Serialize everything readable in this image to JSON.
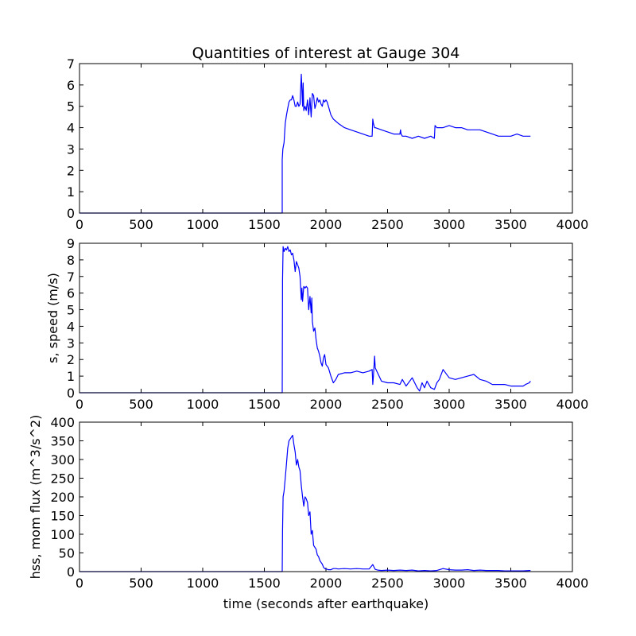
{
  "chart_data": [
    {
      "type": "line",
      "title": "Quantities of interest at Gauge 304",
      "xlabel": "",
      "ylabel": "",
      "xlim": [
        0,
        4000
      ],
      "ylim": [
        0,
        7
      ],
      "xticks": [
        "0",
        "500",
        "1000",
        "1500",
        "2000",
        "2500",
        "3000",
        "3500",
        "4000"
      ],
      "yticks": [
        "0",
        "1",
        "2",
        "3",
        "4",
        "5",
        "6",
        "7"
      ],
      "grid": false,
      "series": [
        {
          "color": "#0000ff",
          "x": [
            0,
            1645,
            1645,
            1650,
            1660,
            1670,
            1680,
            1690,
            1700,
            1710,
            1720,
            1730,
            1740,
            1750,
            1760,
            1770,
            1780,
            1790,
            1800,
            1810,
            1815,
            1820,
            1830,
            1840,
            1850,
            1860,
            1870,
            1880,
            1890,
            1900,
            1910,
            1920,
            1930,
            1940,
            1950,
            1960,
            1970,
            1980,
            1990,
            2000,
            2010,
            2020,
            2040,
            2060,
            2080,
            2100,
            2150,
            2200,
            2250,
            2300,
            2350,
            2375,
            2380,
            2385,
            2395,
            2400,
            2450,
            2500,
            2550,
            2600,
            2605,
            2610,
            2620,
            2650,
            2700,
            2750,
            2800,
            2850,
            2880,
            2885,
            2900,
            2950,
            3000,
            3050,
            3100,
            3150,
            3200,
            3250,
            3300,
            3350,
            3400,
            3450,
            3500,
            3550,
            3600,
            3650,
            3660
          ],
          "y": [
            0,
            0,
            2.5,
            3.0,
            3.3,
            4.2,
            4.6,
            4.9,
            5.2,
            5.3,
            5.3,
            5.5,
            5.3,
            5.0,
            5.0,
            5.2,
            5.0,
            5.1,
            6.5,
            5.0,
            6.1,
            4.8,
            5.0,
            4.8,
            5.3,
            4.6,
            5.4,
            4.5,
            5.6,
            5.5,
            4.9,
            5.1,
            5.4,
            5.2,
            5.3,
            5.1,
            5.0,
            5.3,
            5.2,
            5.3,
            5.2,
            5.0,
            4.6,
            4.4,
            4.3,
            4.2,
            4.0,
            3.9,
            3.8,
            3.7,
            3.6,
            3.6,
            4.4,
            4.2,
            4.0,
            4.0,
            3.9,
            3.8,
            3.7,
            3.7,
            3.9,
            3.7,
            3.6,
            3.6,
            3.5,
            3.6,
            3.5,
            3.6,
            3.5,
            4.1,
            4.0,
            4.0,
            4.1,
            4.0,
            4.0,
            3.9,
            3.9,
            3.9,
            3.8,
            3.7,
            3.6,
            3.6,
            3.6,
            3.7,
            3.6,
            3.6,
            3.6
          ]
        }
      ]
    },
    {
      "type": "line",
      "title": "",
      "xlabel": "",
      "ylabel": "s, speed (m/s)",
      "xlim": [
        0,
        4000
      ],
      "ylim": [
        0,
        9
      ],
      "xticks": [
        "0",
        "500",
        "1000",
        "1500",
        "2000",
        "2500",
        "3000",
        "3500",
        "4000"
      ],
      "yticks": [
        "0",
        "1",
        "2",
        "3",
        "4",
        "5",
        "6",
        "7",
        "8",
        "9"
      ],
      "grid": false,
      "series": [
        {
          "color": "#0000ff",
          "x": [
            0,
            1645,
            1648,
            1652,
            1660,
            1670,
            1680,
            1690,
            1700,
            1710,
            1720,
            1730,
            1740,
            1750,
            1760,
            1770,
            1780,
            1790,
            1800,
            1805,
            1810,
            1820,
            1830,
            1840,
            1850,
            1860,
            1870,
            1880,
            1885,
            1890,
            1895,
            1900,
            1910,
            1920,
            1930,
            1940,
            1950,
            1960,
            1970,
            1980,
            1990,
            2000,
            2020,
            2040,
            2060,
            2080,
            2100,
            2150,
            2200,
            2250,
            2300,
            2350,
            2375,
            2380,
            2385,
            2395,
            2400,
            2450,
            2500,
            2550,
            2600,
            2620,
            2650,
            2700,
            2720,
            2740,
            2760,
            2780,
            2800,
            2820,
            2850,
            2880,
            2900,
            2920,
            2950,
            3000,
            3050,
            3100,
            3150,
            3200,
            3250,
            3300,
            3350,
            3400,
            3450,
            3500,
            3550,
            3600,
            3620,
            3650,
            3660
          ],
          "y": [
            0,
            0,
            6.8,
            8.8,
            8.5,
            8.7,
            8.6,
            8.8,
            8.5,
            8.6,
            8.3,
            8.4,
            8.0,
            7.3,
            7.9,
            7.7,
            7.5,
            7.0,
            5.6,
            6.3,
            5.5,
            6.4,
            6.3,
            6.4,
            6.3,
            5.0,
            5.8,
            4.8,
            5.7,
            4.3,
            4.0,
            3.7,
            3.9,
            3.2,
            2.7,
            2.5,
            2.2,
            1.8,
            1.6,
            2.1,
            2.3,
            1.7,
            1.5,
            1.0,
            0.6,
            0.8,
            1.1,
            1.2,
            1.2,
            1.3,
            1.2,
            1.3,
            1.4,
            0.5,
            1.0,
            2.2,
            1.5,
            0.7,
            0.6,
            0.6,
            0.5,
            0.8,
            0.4,
            0.9,
            0.6,
            0.3,
            0.1,
            0.6,
            0.3,
            0.7,
            0.3,
            0.2,
            0.6,
            0.8,
            1.4,
            0.9,
            0.8,
            0.9,
            1.0,
            1.1,
            0.8,
            0.7,
            0.5,
            0.5,
            0.5,
            0.4,
            0.4,
            0.4,
            0.5,
            0.6,
            0.7
          ]
        }
      ]
    },
    {
      "type": "line",
      "title": "",
      "xlabel": "time (seconds after earthquake)",
      "ylabel": "hss, mom flux (m^3/s^2)",
      "xlim": [
        0,
        4000
      ],
      "ylim": [
        0,
        400
      ],
      "xticks": [
        "0",
        "500",
        "1000",
        "1500",
        "2000",
        "2500",
        "3000",
        "3500",
        "4000"
      ],
      "yticks": [
        "0",
        "50",
        "100",
        "150",
        "200",
        "250",
        "300",
        "350",
        "400"
      ],
      "grid": false,
      "series": [
        {
          "color": "#0000ff",
          "x": [
            0,
            1645,
            1648,
            1652,
            1660,
            1670,
            1680,
            1690,
            1700,
            1710,
            1720,
            1730,
            1740,
            1750,
            1760,
            1770,
            1780,
            1790,
            1800,
            1810,
            1820,
            1830,
            1840,
            1850,
            1860,
            1870,
            1880,
            1890,
            1900,
            1910,
            1920,
            1930,
            1940,
            1950,
            1960,
            1970,
            1980,
            1990,
            2000,
            2020,
            2040,
            2060,
            2080,
            2100,
            2150,
            2200,
            2250,
            2300,
            2350,
            2380,
            2390,
            2400,
            2420,
            2450,
            2500,
            2550,
            2600,
            2650,
            2700,
            2750,
            2800,
            2850,
            2900,
            2950,
            3000,
            3050,
            3100,
            3150,
            3200,
            3250,
            3300,
            3350,
            3400,
            3450,
            3500,
            3550,
            3600,
            3650,
            3660
          ],
          "y": [
            0,
            0,
            110,
            200,
            215,
            250,
            290,
            330,
            350,
            355,
            360,
            365,
            340,
            320,
            285,
            300,
            280,
            270,
            230,
            200,
            175,
            200,
            195,
            185,
            150,
            160,
            100,
            110,
            70,
            65,
            60,
            45,
            40,
            30,
            25,
            20,
            12,
            8,
            7,
            5,
            5,
            8,
            8,
            7,
            8,
            7,
            8,
            7,
            7,
            19,
            12,
            6,
            4,
            3,
            4,
            3,
            4,
            3,
            4,
            2,
            3,
            2,
            3,
            8,
            5,
            4,
            4,
            5,
            3,
            4,
            3,
            3,
            3,
            2,
            2,
            2,
            2,
            3,
            3
          ]
        }
      ]
    }
  ]
}
